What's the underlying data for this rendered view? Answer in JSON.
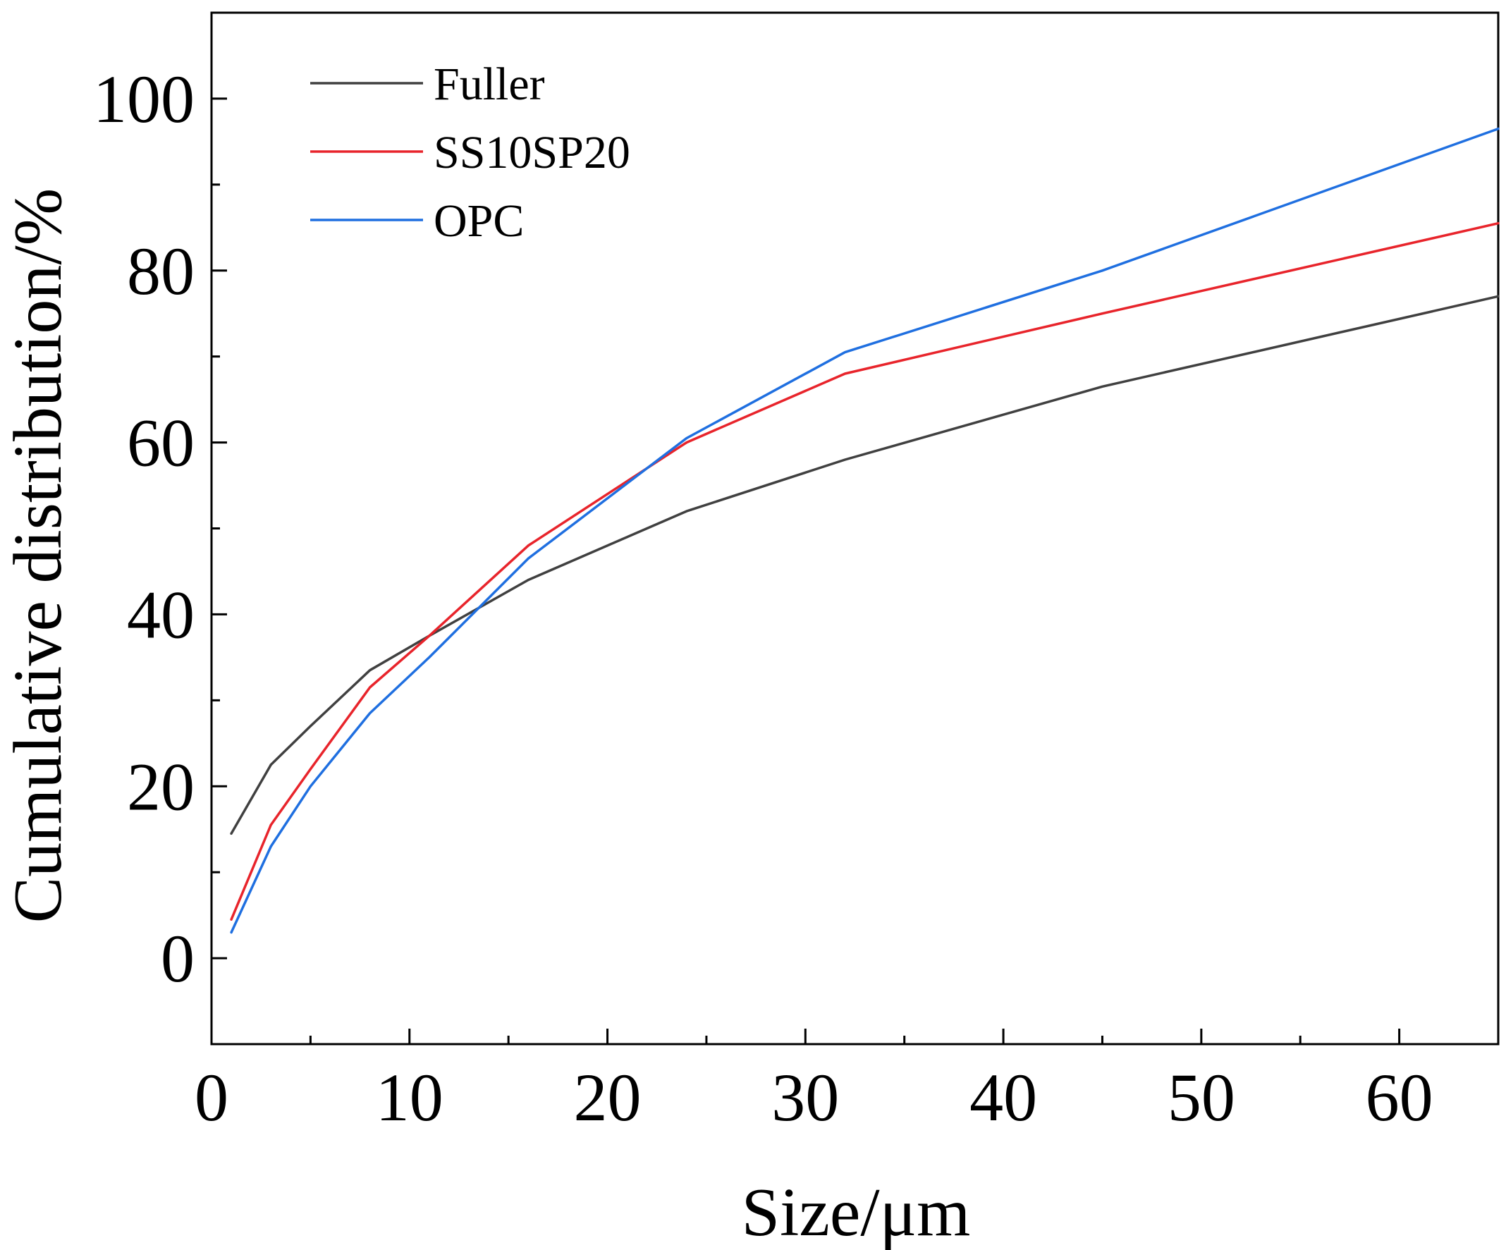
{
  "chart_data": {
    "type": "line",
    "title": "",
    "xlabel": "Size/μm",
    "ylabel": "Cumulative distribution/%",
    "xlim": [
      0,
      65
    ],
    "ylim": [
      -10,
      110
    ],
    "x_ticks": [
      0,
      10,
      20,
      30,
      40,
      50,
      60
    ],
    "y_ticks": [
      0,
      20,
      40,
      60,
      80,
      100
    ],
    "x_tick_labels": [
      "0",
      "10",
      "20",
      "30",
      "40",
      "50",
      "60"
    ],
    "y_tick_labels": [
      "0",
      "20",
      "40",
      "60",
      "80",
      "100"
    ],
    "grid": false,
    "legend_position": "top-left",
    "series": [
      {
        "name": "Fuller",
        "color": "#404040",
        "x": [
          1,
          3,
          5,
          8,
          11,
          16,
          24,
          32,
          45,
          65
        ],
        "y": [
          14.5,
          22.5,
          27,
          33.5,
          37.5,
          44,
          52,
          58,
          66.5,
          77
        ]
      },
      {
        "name": "SS10SP20",
        "color": "#e8242b",
        "x": [
          1,
          3,
          5,
          8,
          11,
          16,
          24,
          32,
          45,
          65
        ],
        "y": [
          4.5,
          15.5,
          22,
          31.5,
          37.5,
          48,
          60,
          68,
          75,
          85.5
        ]
      },
      {
        "name": "OPC",
        "color": "#1f6fe0",
        "x": [
          1,
          3,
          5,
          8,
          11,
          16,
          24,
          32,
          45,
          65
        ],
        "y": [
          3,
          13,
          20,
          28.5,
          35,
          46.5,
          60.5,
          70.5,
          80,
          96.5
        ]
      }
    ]
  }
}
